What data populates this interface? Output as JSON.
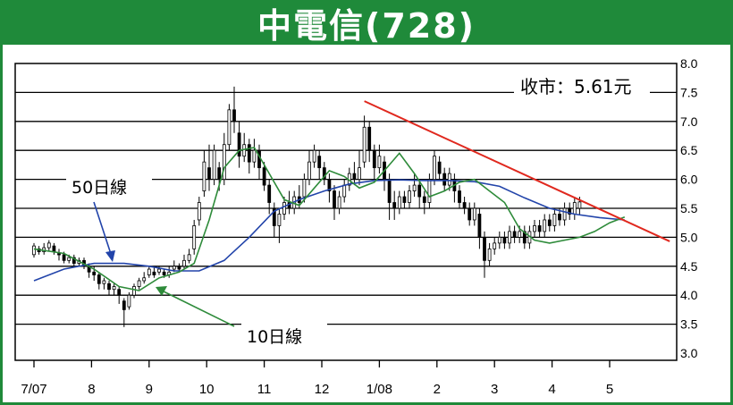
{
  "title": "中電信(728)",
  "colors": {
    "frame": "#1f8a3a",
    "candle": "#000000",
    "ma10": "#2e8b3a",
    "ma50": "#2244aa",
    "trendline": "#e0281e",
    "grid": "#000000"
  },
  "chart_data": {
    "type": "candlestick",
    "title": "中電信(728)",
    "close_label": "收市：5.61元",
    "y_axis": {
      "position": "right",
      "ylim": [
        3.0,
        8.0
      ],
      "ticks": [
        "8.0",
        "7.5",
        "7.0",
        "6.5",
        "6.0",
        "5.5",
        "5.0",
        "4.5",
        "4.0",
        "3.5",
        "3.0"
      ]
    },
    "x_axis": {
      "ticks": [
        {
          "label": "7/07",
          "t": 0
        },
        {
          "label": "8",
          "t": 23
        },
        {
          "label": "9",
          "t": 46
        },
        {
          "label": "10",
          "t": 69
        },
        {
          "label": "11",
          "t": 92
        },
        {
          "label": "12",
          "t": 115
        },
        {
          "label": "1/08",
          "t": 138
        },
        {
          "label": "2",
          "t": 161
        },
        {
          "label": "3",
          "t": 184
        },
        {
          "label": "4",
          "t": 207
        },
        {
          "label": "5",
          "t": 230
        }
      ],
      "tlim": [
        -1,
        255
      ]
    },
    "series": [
      {
        "name": "10日線",
        "points": [
          [
            0,
            4.8
          ],
          [
            12,
            4.72
          ],
          [
            24,
            4.45
          ],
          [
            34,
            4.15
          ],
          [
            42,
            4.08
          ],
          [
            50,
            4.3
          ],
          [
            58,
            4.4
          ],
          [
            64,
            4.55
          ],
          [
            70,
            5.3
          ],
          [
            76,
            6.2
          ],
          [
            82,
            6.5
          ],
          [
            88,
            6.55
          ],
          [
            94,
            6.1
          ],
          [
            100,
            5.65
          ],
          [
            106,
            5.55
          ],
          [
            112,
            5.85
          ],
          [
            118,
            6.15
          ],
          [
            124,
            6.05
          ],
          [
            130,
            5.85
          ],
          [
            136,
            5.95
          ],
          [
            142,
            6.25
          ],
          [
            146,
            6.45
          ],
          [
            152,
            6.1
          ],
          [
            158,
            5.7
          ],
          [
            164,
            5.8
          ],
          [
            170,
            5.95
          ],
          [
            176,
            6.0
          ],
          [
            182,
            5.8
          ],
          [
            188,
            5.6
          ],
          [
            194,
            5.15
          ],
          [
            200,
            4.95
          ],
          [
            206,
            4.9
          ],
          [
            212,
            4.95
          ],
          [
            218,
            5.0
          ],
          [
            224,
            5.1
          ],
          [
            230,
            5.25
          ],
          [
            236,
            5.35
          ]
        ]
      },
      {
        "name": "50日線",
        "points": [
          [
            0,
            4.25
          ],
          [
            12,
            4.45
          ],
          [
            24,
            4.55
          ],
          [
            36,
            4.55
          ],
          [
            46,
            4.5
          ],
          [
            56,
            4.42
          ],
          [
            66,
            4.42
          ],
          [
            76,
            4.6
          ],
          [
            86,
            5.0
          ],
          [
            96,
            5.45
          ],
          [
            106,
            5.65
          ],
          [
            116,
            5.8
          ],
          [
            126,
            5.92
          ],
          [
            136,
            5.98
          ],
          [
            146,
            5.99
          ],
          [
            156,
            5.98
          ],
          [
            166,
            5.98
          ],
          [
            176,
            5.96
          ],
          [
            186,
            5.88
          ],
          [
            196,
            5.68
          ],
          [
            206,
            5.5
          ],
          [
            216,
            5.4
          ],
          [
            226,
            5.34
          ],
          [
            236,
            5.3
          ]
        ]
      }
    ],
    "trendline": [
      [
        132,
        7.35
      ],
      [
        254,
        4.93
      ]
    ],
    "candles": [
      [
        0,
        4.7,
        4.85,
        4.65,
        4.9
      ],
      [
        2,
        4.8,
        4.75,
        4.7,
        4.85
      ],
      [
        4,
        4.75,
        4.82,
        4.7,
        4.9
      ],
      [
        6,
        4.82,
        4.9,
        4.75,
        4.95
      ],
      [
        8,
        4.85,
        4.75,
        4.7,
        4.9
      ],
      [
        10,
        4.72,
        4.7,
        4.6,
        4.8
      ],
      [
        12,
        4.7,
        4.6,
        4.55,
        4.75
      ],
      [
        14,
        4.6,
        4.65,
        4.55,
        4.7
      ],
      [
        16,
        4.65,
        4.55,
        4.5,
        4.7
      ],
      [
        18,
        4.55,
        4.6,
        4.5,
        4.65
      ],
      [
        20,
        4.6,
        4.52,
        4.45,
        4.65
      ],
      [
        22,
        4.5,
        4.4,
        4.3,
        4.55
      ],
      [
        24,
        4.4,
        4.35,
        4.25,
        4.5
      ],
      [
        26,
        4.35,
        4.2,
        4.1,
        4.4
      ],
      [
        28,
        4.2,
        4.25,
        4.1,
        4.3
      ],
      [
        30,
        4.2,
        4.1,
        4.0,
        4.25
      ],
      [
        32,
        4.1,
        4.15,
        4.0,
        4.2
      ],
      [
        34,
        4.1,
        4.0,
        3.85,
        4.15
      ],
      [
        36,
        3.9,
        3.75,
        3.45,
        3.95
      ],
      [
        38,
        3.8,
        4.0,
        3.75,
        4.05
      ],
      [
        40,
        4.0,
        4.15,
        3.95,
        4.2
      ],
      [
        42,
        4.15,
        4.25,
        4.1,
        4.3
      ],
      [
        44,
        4.25,
        4.3,
        4.2,
        4.4
      ],
      [
        46,
        4.35,
        4.45,
        4.3,
        4.5
      ],
      [
        48,
        4.4,
        4.35,
        4.3,
        4.5
      ],
      [
        50,
        4.4,
        4.45,
        4.35,
        4.5
      ],
      [
        52,
        4.4,
        4.35,
        4.3,
        4.45
      ],
      [
        54,
        4.35,
        4.4,
        4.3,
        4.5
      ],
      [
        56,
        4.45,
        4.5,
        4.4,
        4.6
      ],
      [
        58,
        4.5,
        4.45,
        4.4,
        4.55
      ],
      [
        60,
        4.5,
        4.6,
        4.45,
        4.7
      ],
      [
        62,
        4.6,
        4.7,
        4.55,
        4.8
      ],
      [
        64,
        4.8,
        5.2,
        4.7,
        5.3
      ],
      [
        66,
        5.3,
        5.6,
        5.2,
        5.7
      ],
      [
        68,
        5.8,
        6.3,
        5.7,
        6.5
      ],
      [
        70,
        6.2,
        6.0,
        5.8,
        6.6
      ],
      [
        72,
        6.0,
        6.5,
        5.9,
        6.6
      ],
      [
        74,
        6.2,
        6.0,
        5.8,
        6.3
      ],
      [
        76,
        6.0,
        6.6,
        5.9,
        6.8
      ],
      [
        78,
        6.6,
        7.2,
        6.5,
        7.3
      ],
      [
        80,
        7.2,
        7.0,
        6.8,
        7.6
      ],
      [
        82,
        6.8,
        6.4,
        6.2,
        7.0
      ],
      [
        84,
        6.4,
        6.6,
        6.3,
        6.8
      ],
      [
        86,
        6.6,
        6.3,
        6.1,
        6.7
      ],
      [
        88,
        6.3,
        6.5,
        6.2,
        6.7
      ],
      [
        90,
        6.5,
        6.2,
        6.0,
        6.6
      ],
      [
        92,
        6.2,
        5.9,
        5.8,
        6.3
      ],
      [
        94,
        5.9,
        5.6,
        5.4,
        6.0
      ],
      [
        96,
        5.5,
        5.2,
        5.0,
        5.6
      ],
      [
        98,
        5.2,
        5.4,
        4.9,
        5.5
      ],
      [
        100,
        5.4,
        5.6,
        5.3,
        5.7
      ],
      [
        102,
        5.6,
        5.5,
        5.4,
        5.8
      ],
      [
        104,
        5.5,
        5.7,
        5.4,
        5.8
      ],
      [
        106,
        5.7,
        5.6,
        5.5,
        5.9
      ],
      [
        108,
        5.7,
        6.0,
        5.6,
        6.1
      ],
      [
        110,
        6.0,
        6.3,
        5.9,
        6.5
      ],
      [
        112,
        6.3,
        6.5,
        6.2,
        6.6
      ],
      [
        114,
        6.4,
        6.2,
        6.0,
        6.5
      ],
      [
        116,
        6.2,
        6.0,
        5.9,
        6.3
      ],
      [
        118,
        6.0,
        5.8,
        5.6,
        6.1
      ],
      [
        120,
        5.8,
        5.5,
        5.3,
        5.9
      ],
      [
        122,
        5.5,
        5.7,
        5.4,
        5.8
      ],
      [
        124,
        5.7,
        5.9,
        5.6,
        6.0
      ],
      [
        126,
        5.9,
        6.1,
        5.8,
        6.2
      ],
      [
        128,
        6.1,
        6.0,
        5.9,
        6.3
      ],
      [
        130,
        6.0,
        6.2,
        5.9,
        6.5
      ],
      [
        132,
        6.3,
        6.9,
        6.2,
        7.1
      ],
      [
        134,
        6.9,
        6.5,
        6.3,
        7.0
      ],
      [
        136,
        6.5,
        6.2,
        6.0,
        6.6
      ],
      [
        138,
        6.2,
        6.4,
        6.1,
        6.6
      ],
      [
        140,
        6.3,
        6.0,
        5.8,
        6.4
      ],
      [
        142,
        6.0,
        5.6,
        5.3,
        6.1
      ],
      [
        144,
        5.6,
        5.5,
        5.3,
        5.8
      ],
      [
        146,
        5.5,
        5.7,
        5.4,
        5.8
      ],
      [
        148,
        5.7,
        5.6,
        5.5,
        5.8
      ],
      [
        150,
        5.6,
        5.8,
        5.5,
        5.9
      ],
      [
        152,
        5.8,
        5.9,
        5.7,
        6.1
      ],
      [
        154,
        5.9,
        5.7,
        5.5,
        6.0
      ],
      [
        156,
        5.7,
        5.6,
        5.4,
        5.8
      ],
      [
        158,
        5.6,
        6.0,
        5.5,
        6.1
      ],
      [
        160,
        6.0,
        6.4,
        5.9,
        6.5
      ],
      [
        162,
        6.3,
        6.1,
        6.0,
        6.4
      ],
      [
        164,
        6.1,
        5.9,
        5.8,
        6.2
      ],
      [
        166,
        5.9,
        6.1,
        5.8,
        6.2
      ],
      [
        168,
        6.0,
        5.8,
        5.6,
        6.1
      ],
      [
        170,
        5.8,
        5.6,
        5.5,
        5.9
      ],
      [
        172,
        5.6,
        5.5,
        5.4,
        5.7
      ],
      [
        174,
        5.5,
        5.3,
        5.2,
        5.6
      ],
      [
        176,
        5.3,
        5.5,
        5.2,
        5.6
      ],
      [
        178,
        5.4,
        5.0,
        4.8,
        5.5
      ],
      [
        180,
        5.0,
        4.6,
        4.3,
        5.1
      ],
      [
        182,
        4.6,
        4.8,
        4.5,
        4.9
      ],
      [
        184,
        4.8,
        4.9,
        4.7,
        5.0
      ],
      [
        186,
        4.9,
        5.0,
        4.8,
        5.1
      ],
      [
        188,
        5.0,
        4.9,
        4.8,
        5.1
      ],
      [
        190,
        4.9,
        5.1,
        4.8,
        5.2
      ],
      [
        192,
        5.1,
        5.0,
        4.9,
        5.2
      ],
      [
        194,
        5.0,
        5.1,
        4.9,
        5.2
      ],
      [
        196,
        5.1,
        4.9,
        4.8,
        5.2
      ],
      [
        198,
        4.9,
        5.1,
        4.8,
        5.2
      ],
      [
        200,
        5.1,
        5.2,
        5.0,
        5.3
      ],
      [
        202,
        5.2,
        5.1,
        5.0,
        5.3
      ],
      [
        204,
        5.1,
        5.3,
        5.0,
        5.4
      ],
      [
        206,
        5.3,
        5.2,
        5.1,
        5.4
      ],
      [
        208,
        5.2,
        5.4,
        5.1,
        5.5
      ],
      [
        210,
        5.4,
        5.3,
        5.2,
        5.5
      ],
      [
        212,
        5.3,
        5.5,
        5.2,
        5.6
      ],
      [
        214,
        5.5,
        5.4,
        5.3,
        5.6
      ],
      [
        216,
        5.4,
        5.6,
        5.3,
        5.7
      ],
      [
        218,
        5.5,
        5.61,
        5.4,
        5.7
      ]
    ],
    "annotations": [
      {
        "label": "50日線"
      },
      {
        "label": "10日線"
      }
    ]
  }
}
